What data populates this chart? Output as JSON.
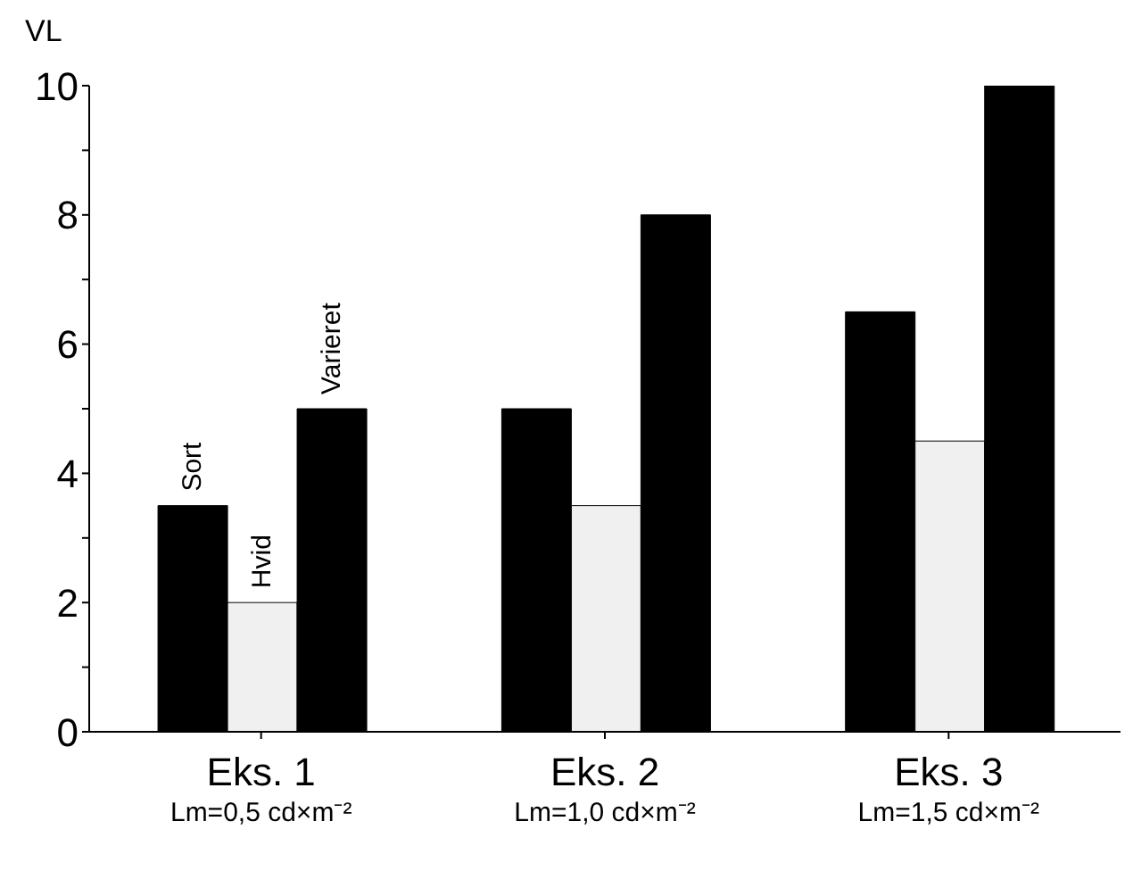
{
  "chart_data": {
    "type": "bar",
    "ylabel": "VL",
    "categories": [
      "Eks. 1\nLm=0,5 cd×m⁻²",
      "Eks. 2\nLm=1,0 cd×m⁻²",
      "Eks. 3\nLm=1,5 cd×m⁻²"
    ],
    "series": [
      {
        "name": "Sort",
        "color": "#000000",
        "values": [
          3.5,
          5,
          6.5
        ]
      },
      {
        "name": "Hvid",
        "color": "#f0f0f0",
        "values": [
          2,
          3.5,
          4.5
        ]
      },
      {
        "name": "Varieret",
        "color": "#000000",
        "values": [
          5,
          8,
          10
        ]
      }
    ],
    "ylim": [
      0,
      10
    ],
    "yticks": [
      0,
      {
        "value": 1,
        "label": null
      },
      2,
      {
        "value": 3,
        "label": null
      },
      4,
      {
        "value": 5,
        "label": null
      },
      6,
      {
        "value": 7,
        "label": null
      },
      8,
      {
        "value": 9,
        "label": null
      },
      10
    ],
    "grid": false,
    "legend": false
  }
}
